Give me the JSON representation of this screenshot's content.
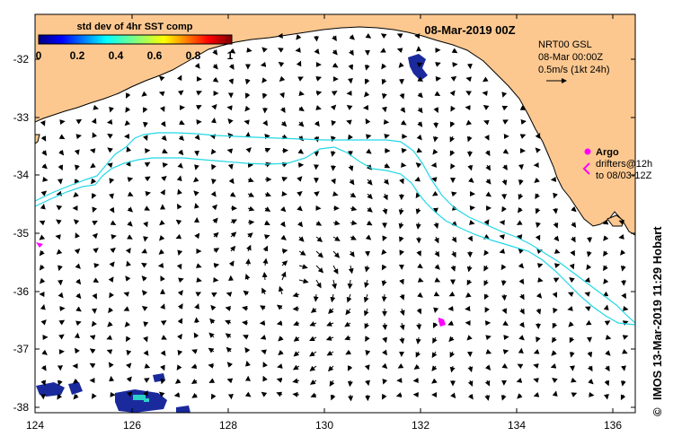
{
  "map": {
    "date_title": "08-Mar-2019 00Z",
    "x_ticks": [
      "124",
      "126",
      "128",
      "130",
      "132",
      "134",
      "136"
    ],
    "y_ticks": [
      "-32",
      "-33",
      "-34",
      "-35",
      "-36",
      "-37",
      "-38"
    ],
    "colors": {
      "land": "#fcc890",
      "contour": "#22d8e6",
      "argo": "#ff00ff",
      "sst_patch": "#1a2a9c"
    }
  },
  "colorbar": {
    "title": "std dev of 4hr SST comp",
    "labels": [
      "0",
      "0.2",
      "0.4",
      "0.6",
      "0.8",
      "1"
    ]
  },
  "info": {
    "source": "NRT00 GSL",
    "time": "08-Mar 00:00Z",
    "scale": "0.5m/s (1kt 24h)"
  },
  "legend": {
    "argo_label": "Argo",
    "drifters_line1": "drifters@12h",
    "drifters_line2": "to 08/03-12Z"
  },
  "credit": "IMOS 13-Mar-2019 11:29 Hobart",
  "copyright_symbol": "©"
}
